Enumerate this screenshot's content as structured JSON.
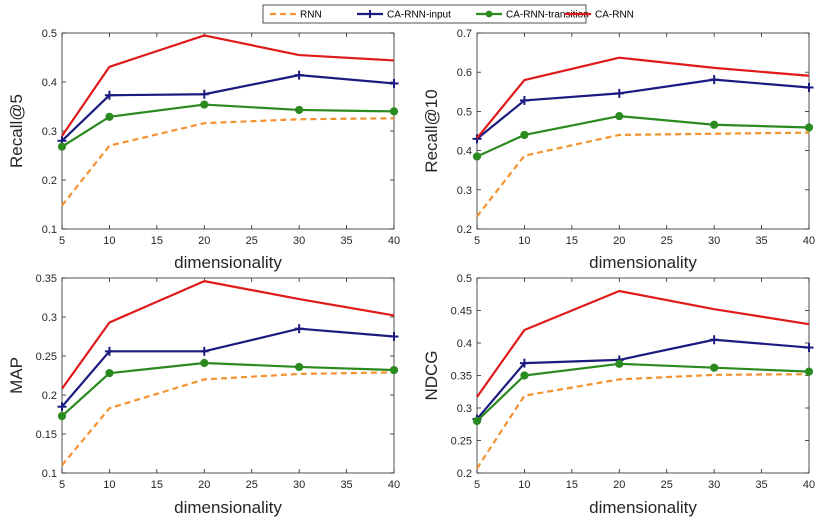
{
  "legend": [
    {
      "key": "rnn",
      "label": "RNN"
    },
    {
      "key": "input",
      "label": "CA-RNN-input"
    },
    {
      "key": "transition",
      "label": "CA-RNN-transition"
    },
    {
      "key": "carnn",
      "label": "CA-RNN"
    }
  ],
  "styles": {
    "rnn": {
      "color": "#f5922f",
      "dash": "6,4",
      "marker": "none"
    },
    "input": {
      "color": "#1a1a80",
      "dash": "",
      "marker": "plus"
    },
    "transition": {
      "color": "#2a8a1e",
      "dash": "",
      "marker": "circle"
    },
    "carnn": {
      "color": "#e01a1a",
      "dash": "",
      "marker": "none"
    }
  },
  "chart_data": [
    {
      "type": "line",
      "title": "",
      "xlabel": "dimensionality",
      "ylabel": "Recall@5",
      "x": [
        5,
        10,
        20,
        30,
        40
      ],
      "xticks": [
        5,
        10,
        15,
        20,
        25,
        30,
        35,
        40
      ],
      "xlim": [
        5,
        40
      ],
      "ylim": [
        0.1,
        0.5
      ],
      "yticks": [
        "0.1",
        "0.2",
        "0.3",
        "0.4",
        "0.5"
      ],
      "series": [
        {
          "key": "rnn",
          "name": "RNN",
          "values": [
            0.148,
            0.27,
            0.316,
            0.324,
            0.326
          ]
        },
        {
          "key": "input",
          "name": "CA-RNN-input",
          "values": [
            0.28,
            0.373,
            0.375,
            0.414,
            0.397
          ]
        },
        {
          "key": "transition",
          "name": "CA-RNN-transition",
          "values": [
            0.268,
            0.329,
            0.354,
            0.343,
            0.34
          ]
        },
        {
          "key": "carnn",
          "name": "CA-RNN",
          "values": [
            0.29,
            0.431,
            0.495,
            0.455,
            0.444
          ]
        }
      ]
    },
    {
      "type": "line",
      "title": "",
      "xlabel": "dimensionality",
      "ylabel": "Recall@10",
      "x": [
        5,
        10,
        20,
        30,
        40
      ],
      "xticks": [
        5,
        10,
        15,
        20,
        25,
        30,
        35,
        40
      ],
      "xlim": [
        5,
        40
      ],
      "ylim": [
        0.2,
        0.7
      ],
      "yticks": [
        "0.2",
        "0.3",
        "0.4",
        "0.5",
        "0.6",
        "0.7"
      ],
      "series": [
        {
          "key": "rnn",
          "name": "RNN",
          "values": [
            0.232,
            0.387,
            0.44,
            0.443,
            0.446
          ]
        },
        {
          "key": "input",
          "name": "CA-RNN-input",
          "values": [
            0.43,
            0.528,
            0.546,
            0.581,
            0.561
          ]
        },
        {
          "key": "transition",
          "name": "CA-RNN-transition",
          "values": [
            0.385,
            0.44,
            0.488,
            0.466,
            0.459
          ]
        },
        {
          "key": "carnn",
          "name": "CA-RNN",
          "values": [
            0.432,
            0.58,
            0.637,
            0.611,
            0.591
          ]
        }
      ]
    },
    {
      "type": "line",
      "title": "",
      "xlabel": "dimensionality",
      "ylabel": "MAP",
      "x": [
        5,
        10,
        20,
        30,
        40
      ],
      "xticks": [
        5,
        10,
        15,
        20,
        25,
        30,
        35,
        40
      ],
      "xlim": [
        5,
        40
      ],
      "ylim": [
        0.1,
        0.35
      ],
      "yticks": [
        "0.1",
        "0.15",
        "0.2",
        "0.25",
        "0.3",
        "0.35"
      ],
      "series": [
        {
          "key": "rnn",
          "name": "RNN",
          "values": [
            0.11,
            0.183,
            0.22,
            0.227,
            0.229
          ]
        },
        {
          "key": "input",
          "name": "CA-RNN-input",
          "values": [
            0.185,
            0.256,
            0.256,
            0.285,
            0.275
          ]
        },
        {
          "key": "transition",
          "name": "CA-RNN-transition",
          "values": [
            0.173,
            0.228,
            0.241,
            0.236,
            0.232
          ]
        },
        {
          "key": "carnn",
          "name": "CA-RNN",
          "values": [
            0.208,
            0.293,
            0.346,
            0.323,
            0.302
          ]
        }
      ]
    },
    {
      "type": "line",
      "title": "",
      "xlabel": "dimensionality",
      "ylabel": "NDCG",
      "x": [
        5,
        10,
        20,
        30,
        40
      ],
      "xticks": [
        5,
        10,
        15,
        20,
        25,
        30,
        35,
        40
      ],
      "xlim": [
        5,
        40
      ],
      "ylim": [
        0.2,
        0.5
      ],
      "yticks": [
        "0.2",
        "0.25",
        "0.3",
        "0.35",
        "0.4",
        "0.45",
        "0.5"
      ],
      "series": [
        {
          "key": "rnn",
          "name": "RNN",
          "values": [
            0.207,
            0.319,
            0.344,
            0.351,
            0.352
          ]
        },
        {
          "key": "input",
          "name": "CA-RNN-input",
          "values": [
            0.283,
            0.369,
            0.374,
            0.405,
            0.393
          ]
        },
        {
          "key": "transition",
          "name": "CA-RNN-transition",
          "values": [
            0.28,
            0.35,
            0.368,
            0.362,
            0.356
          ]
        },
        {
          "key": "carnn",
          "name": "CA-RNN",
          "values": [
            0.317,
            0.42,
            0.48,
            0.452,
            0.429
          ]
        }
      ]
    }
  ]
}
